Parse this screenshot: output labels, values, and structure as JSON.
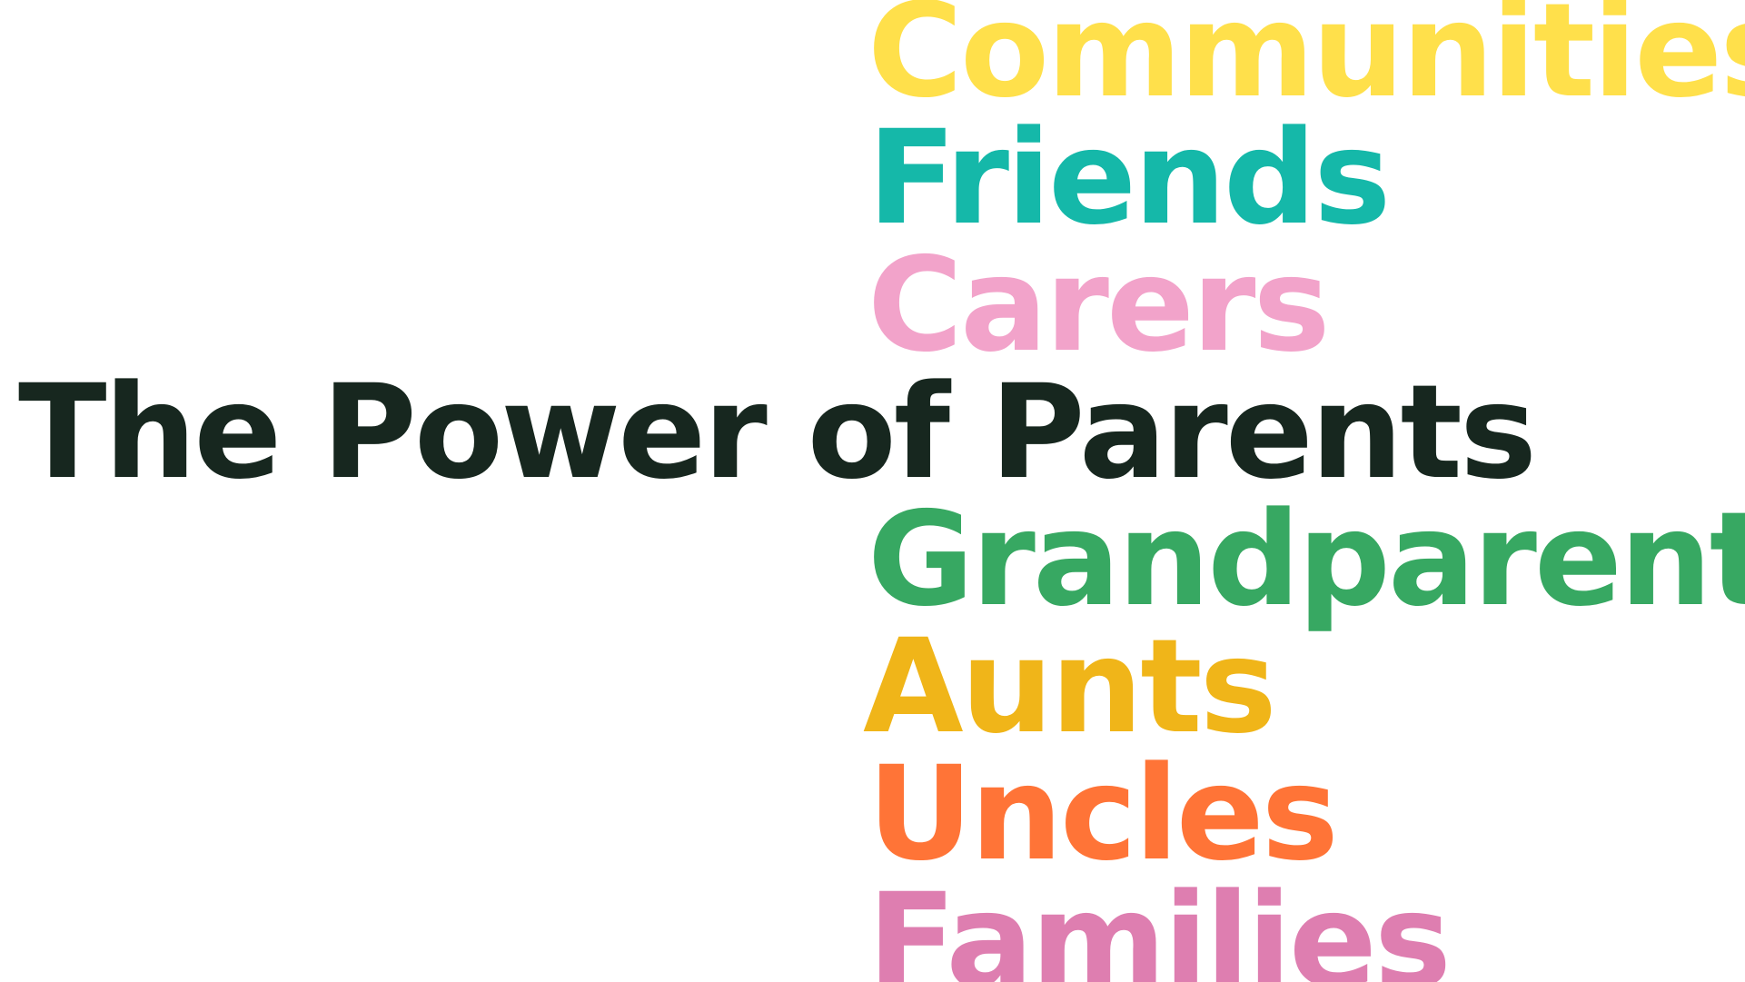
{
  "headline": {
    "lead": "The Power of ",
    "highlight": "Parents",
    "color": "#17271f"
  },
  "words": [
    {
      "text": "Communities",
      "color": "#ffe04b"
    },
    {
      "text": "Friends",
      "color": "#15b8a9"
    },
    {
      "text": "Carers",
      "color": "#f2a3ca"
    },
    {
      "text": "Grandparents",
      "color": "#37a862"
    },
    {
      "text": "Aunts",
      "color": "#f0b519"
    },
    {
      "text": "Uncles",
      "color": "#ff7437"
    },
    {
      "text": "Families",
      "color": "#de7eb0"
    }
  ]
}
